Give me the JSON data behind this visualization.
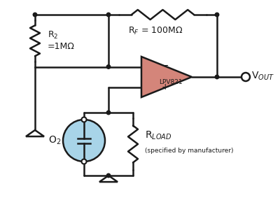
{
  "bg_color": "#ffffff",
  "line_color": "#1a1a1a",
  "opamp_fill": "#d4857a",
  "opamp_stroke": "#1a1a1a",
  "sensor_fill": "#a8d4e8",
  "sensor_stroke": "#1a1a1a",
  "rf_label": "R$_F$ = 100MΩ",
  "r2_label": "R$_2$\n=1MΩ",
  "rload_label": "R$_{LOAD}$",
  "rload_sub": "(specified by manufacturer)",
  "opamp_label": "LPV821",
  "sensor_label": "O$_2$",
  "vout_label": "V$_{OUT}$",
  "lw": 1.8,
  "dot_size": 5.5
}
